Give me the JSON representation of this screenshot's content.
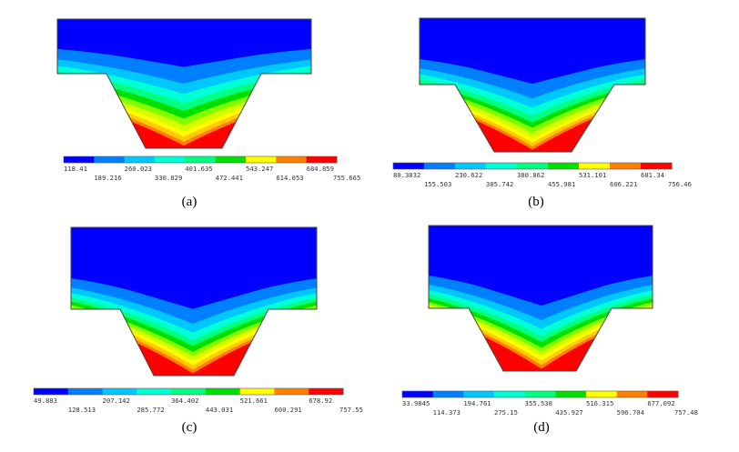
{
  "colors": [
    "#0000ff",
    "#0080ff",
    "#00c8ff",
    "#00ffd5",
    "#00ff80",
    "#00e000",
    "#80ff00",
    "#d4ff00",
    "#ffff00",
    "#ffc800",
    "#ff8000",
    "#ff0000"
  ],
  "panels": [
    {
      "caption": "(a)",
      "bands": [
        0.37,
        0.5,
        0.58,
        0.65,
        0.71,
        0.77,
        0.82,
        0.87,
        0.91,
        0.95,
        0.98
      ],
      "ticks_top": [
        "118.41",
        "260.023",
        "401.635",
        "543.247",
        "684.859"
      ],
      "ticks_bottom": [
        "189.216",
        "330.829",
        "472.441",
        "614.053",
        "755.665"
      ]
    },
    {
      "caption": "(b)",
      "bands": [
        0.49,
        0.6,
        0.67,
        0.73,
        0.78,
        0.82,
        0.86,
        0.9,
        0.93,
        0.96,
        0.985
      ],
      "ticks_top": [
        "80.3832",
        "230.622",
        "380.862",
        "531.101",
        "681.34"
      ],
      "ticks_bottom": [
        "155.503",
        "305.742",
        "455.981",
        "606.221",
        "756.46"
      ]
    },
    {
      "caption": "(c)",
      "bands": [
        0.55,
        0.65,
        0.71,
        0.76,
        0.8,
        0.84,
        0.87,
        0.9,
        0.93,
        0.96,
        0.985
      ],
      "ticks_top": [
        "49.883",
        "207.142",
        "364.402",
        "521.661",
        "678.92"
      ],
      "ticks_bottom": [
        "128.513",
        "285.772",
        "443.031",
        "600.291",
        "757.55"
      ]
    },
    {
      "caption": "(d)",
      "bands": [
        0.55,
        0.65,
        0.71,
        0.76,
        0.8,
        0.84,
        0.87,
        0.9,
        0.93,
        0.96,
        0.985
      ],
      "ticks_top": [
        "33.9845",
        "194.761",
        "355.538",
        "516.315",
        "677.092"
      ],
      "ticks_bottom": [
        "114.373",
        "275.15",
        "435.927",
        "596.704",
        "757.48"
      ]
    }
  ]
}
